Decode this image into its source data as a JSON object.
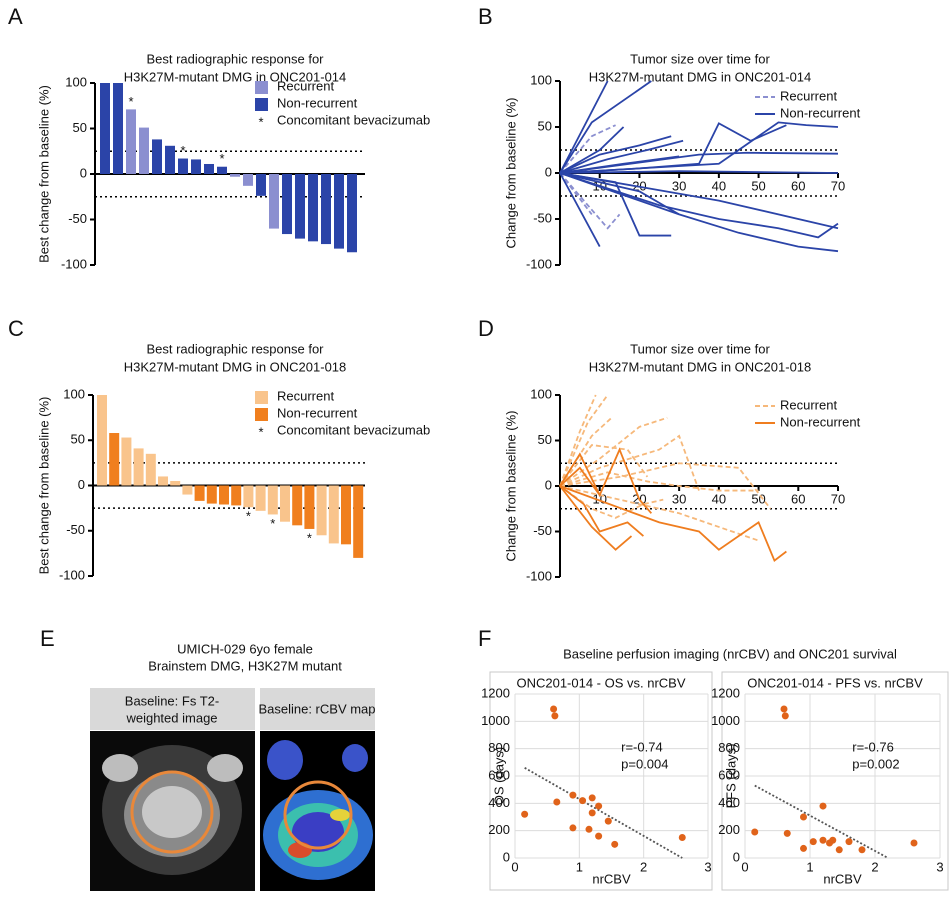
{
  "panels": [
    "A",
    "B",
    "C",
    "D",
    "E",
    "F"
  ],
  "chart_data": [
    {
      "type": "bar",
      "title": [
        "Best radiographic response for",
        "H3K27M-mutant DMG in ONC201-014"
      ],
      "y_label": "Best change from baseline (%)",
      "ylim": [
        -100,
        100
      ],
      "yticks": [
        -100,
        -50,
        0,
        50,
        100
      ],
      "ref_lines": [
        25,
        -25
      ],
      "series": [
        {
          "name": "Recurrent",
          "color": "#8b8fd0",
          "values": [
            null,
            null,
            71,
            51,
            null,
            null,
            null,
            null,
            null,
            null,
            -3,
            -13,
            null,
            -60,
            null,
            null,
            null,
            null,
            null,
            null
          ]
        },
        {
          "name": "Non-recurrent",
          "color": "#2b44a8",
          "values": [
            100,
            100,
            null,
            null,
            38,
            31,
            17,
            16,
            11,
            8,
            null,
            null,
            -24,
            null,
            -66,
            -71,
            -74,
            -77,
            -82,
            -86
          ]
        }
      ],
      "marker": {
        "name": "Concomitant bevacizumab",
        "symbol": "*",
        "indices": [
          2,
          6,
          9
        ]
      }
    },
    {
      "type": "line",
      "title": [
        "Tumor size over time for",
        "H3K27M-mutant DMG in ONC201-014"
      ],
      "y_label": "Change from baseline (%)",
      "xlim": [
        0,
        70
      ],
      "xticks": [
        10,
        20,
        30,
        40,
        50,
        60,
        70
      ],
      "ylim": [
        -100,
        100
      ],
      "yticks": [
        -100,
        -50,
        0,
        50,
        100
      ],
      "ref_lines": [
        25,
        -25
      ],
      "series": [
        {
          "name": "Recurrent",
          "color": "#8b8fd0",
          "dash": true,
          "lines": [
            {
              "x": [
                0,
                8,
                14
              ],
              "y": [
                0,
                40,
                52
              ]
            },
            {
              "x": [
                0,
                8,
                12,
                15
              ],
              "y": [
                0,
                -40,
                -60,
                -45
              ]
            },
            {
              "x": [
                0,
                8
              ],
              "y": [
                0,
                -45
              ]
            }
          ]
        },
        {
          "name": "Non-recurrent",
          "color": "#2b44a8",
          "dash": false,
          "lines": [
            {
              "x": [
                0,
                12
              ],
              "y": [
                0,
                100
              ]
            },
            {
              "x": [
                0,
                8,
                23
              ],
              "y": [
                0,
                55,
                100
              ]
            },
            {
              "x": [
                0,
                10,
                16
              ],
              "y": [
                0,
                25,
                50
              ]
            },
            {
              "x": [
                0,
                10,
                20,
                28
              ],
              "y": [
                0,
                20,
                30,
                40
              ]
            },
            {
              "x": [
                0,
                12,
                22,
                31
              ],
              "y": [
                0,
                15,
                25,
                35
              ]
            },
            {
              "x": [
                0,
                16,
                30
              ],
              "y": [
                0,
                10,
                18
              ]
            },
            {
              "x": [
                0,
                20,
                35,
                40,
                48,
                57
              ],
              "y": [
                0,
                5,
                10,
                54,
                35,
                52
              ]
            },
            {
              "x": [
                0,
                35,
                47,
                70
              ],
              "y": [
                0,
                20,
                22,
                21
              ]
            },
            {
              "x": [
                0,
                40,
                55,
                62,
                70
              ],
              "y": [
                0,
                10,
                55,
                52,
                50
              ]
            },
            {
              "x": [
                0,
                10
              ],
              "y": [
                0,
                -80
              ]
            },
            {
              "x": [
                0,
                14,
                20,
                28
              ],
              "y": [
                0,
                -10,
                -68,
                -68
              ]
            },
            {
              "x": [
                0,
                20,
                30
              ],
              "y": [
                0,
                -20,
                -45
              ]
            },
            {
              "x": [
                0,
                25,
                40,
                55,
                65,
                70
              ],
              "y": [
                0,
                -35,
                -50,
                -60,
                -70,
                -55
              ]
            },
            {
              "x": [
                0,
                30,
                45,
                60,
                70
              ],
              "y": [
                0,
                -45,
                -65,
                -80,
                -85
              ]
            },
            {
              "x": [
                0,
                20,
                40,
                70
              ],
              "y": [
                0,
                -15,
                -30,
                -60
              ]
            },
            {
              "x": [
                0,
                30,
                70
              ],
              "y": [
                0,
                2,
                0
              ]
            }
          ]
        }
      ]
    },
    {
      "type": "bar",
      "title": [
        "Best radiographic response for",
        "H3K27M-mutant DMG in ONC201-018"
      ],
      "y_label": "Best change from baseline (%)",
      "ylim": [
        -100,
        100
      ],
      "yticks": [
        -100,
        -50,
        0,
        50,
        100
      ],
      "ref_lines": [
        25,
        -25
      ],
      "series": [
        {
          "name": "Recurrent",
          "color": "#f9c48c",
          "values": [
            100,
            null,
            53,
            41,
            35,
            10,
            5,
            -10,
            null,
            null,
            null,
            null,
            -24,
            -28,
            -32,
            -40,
            null,
            null,
            -55,
            -64,
            null,
            null
          ]
        },
        {
          "name": "Non-recurrent",
          "color": "#f07f1e",
          "values": [
            null,
            58,
            null,
            null,
            null,
            null,
            null,
            null,
            -17,
            -20,
            -21,
            -22,
            null,
            null,
            null,
            null,
            -44,
            -48,
            null,
            null,
            -65,
            -80
          ]
        }
      ],
      "marker": {
        "name": "Concomitant bevacizumab",
        "symbol": "*",
        "indices": [
          12,
          14,
          17
        ]
      }
    },
    {
      "type": "line",
      "title": [
        "Tumor size over time for",
        "H3K27M-mutant DMG in ONC201-018"
      ],
      "y_label": "Change from baseline (%)",
      "xlim": [
        0,
        70
      ],
      "xticks": [
        10,
        20,
        30,
        40,
        50,
        60,
        70
      ],
      "ylim": [
        -100,
        100
      ],
      "yticks": [
        -100,
        -50,
        0,
        50,
        100
      ],
      "ref_lines": [
        25,
        -25
      ],
      "series": [
        {
          "name": "Recurrent",
          "color": "#f6b87a",
          "dash": true,
          "lines": [
            {
              "x": [
                0,
                5,
                9
              ],
              "y": [
                0,
                60,
                100
              ]
            },
            {
              "x": [
                0,
                7,
                12
              ],
              "y": [
                0,
                70,
                100
              ]
            },
            {
              "x": [
                0,
                8,
                13
              ],
              "y": [
                0,
                55,
                75
              ]
            },
            {
              "x": [
                0,
                8,
                17,
                22
              ],
              "y": [
                0,
                45,
                40,
                10
              ]
            },
            {
              "x": [
                0,
                10,
                20,
                27
              ],
              "y": [
                0,
                30,
                65,
                75
              ]
            },
            {
              "x": [
                0,
                10,
                25,
                30,
                35
              ],
              "y": [
                0,
                20,
                40,
                55,
                -5
              ]
            },
            {
              "x": [
                0,
                15,
                30,
                45,
                53
              ],
              "y": [
                0,
                10,
                25,
                20,
                -25
              ]
            },
            {
              "x": [
                0,
                20,
                30,
                40,
                50
              ],
              "y": [
                0,
                -20,
                -30,
                -45,
                -60
              ]
            },
            {
              "x": [
                0,
                8,
                14,
                21,
                26
              ],
              "y": [
                0,
                -25,
                -35,
                -20,
                -15
              ]
            },
            {
              "x": [
                0,
                12,
                22,
                30,
                40,
                50
              ],
              "y": [
                0,
                15,
                5,
                0,
                -5,
                -5
              ]
            }
          ]
        },
        {
          "name": "Non-recurrent",
          "color": "#ef7d1f",
          "dash": false,
          "lines": [
            {
              "x": [
                0,
                5,
                10,
                15,
                20,
                23
              ],
              "y": [
                0,
                35,
                -10,
                40,
                -15,
                -30
              ]
            },
            {
              "x": [
                0,
                6,
                10,
                17,
                21
              ],
              "y": [
                0,
                -20,
                -50,
                -40,
                -55
              ]
            },
            {
              "x": [
                0,
                8,
                14,
                18
              ],
              "y": [
                0,
                -45,
                -70,
                -55
              ]
            },
            {
              "x": [
                0,
                25,
                35,
                40,
                45,
                50,
                54,
                57
              ],
              "y": [
                0,
                -40,
                -50,
                -70,
                -55,
                -40,
                -82,
                -72
              ]
            },
            {
              "x": [
                0,
                5,
                10
              ],
              "y": [
                0,
                20,
                -10
              ]
            }
          ]
        }
      ]
    },
    {
      "type": "scatter",
      "title": "ONC201-014 - OS vs. nrCBV",
      "x_label": "nrCBV",
      "y_label": "OS (days)",
      "xlim": [
        0,
        3
      ],
      "xticks": [
        0,
        1,
        2,
        3
      ],
      "ylim": [
        0,
        1200
      ],
      "yticks": [
        0,
        200,
        400,
        600,
        800,
        1000,
        1200
      ],
      "grid": true,
      "color": "#e0631a",
      "x": [
        0.15,
        0.6,
        0.62,
        0.65,
        0.9,
        0.9,
        1.05,
        1.15,
        1.2,
        1.2,
        1.3,
        1.3,
        1.45,
        1.55,
        2.6
      ],
      "y": [
        320,
        1090,
        1040,
        410,
        460,
        220,
        420,
        210,
        440,
        330,
        380,
        160,
        270,
        100,
        150
      ],
      "fit": {
        "x": [
          0.15,
          2.6
        ],
        "y": [
          660,
          0
        ]
      },
      "annotations": [
        "r=-0.74",
        "p=0.004"
      ]
    },
    {
      "type": "scatter",
      "title": "ONC201-014 - PFS vs. nrCBV",
      "x_label": "nrCBV",
      "y_label": "PFS (days)",
      "xlim": [
        0,
        3
      ],
      "xticks": [
        0,
        1,
        2,
        3
      ],
      "ylim": [
        0,
        1200
      ],
      "yticks": [
        0,
        200,
        400,
        600,
        800,
        1000,
        1200
      ],
      "grid": true,
      "color": "#e0631a",
      "x": [
        0.15,
        0.6,
        0.62,
        0.65,
        0.9,
        0.9,
        1.05,
        1.2,
        1.2,
        1.3,
        1.35,
        1.45,
        1.6,
        1.8,
        2.6
      ],
      "y": [
        190,
        1090,
        1040,
        180,
        300,
        70,
        120,
        380,
        130,
        110,
        130,
        60,
        120,
        60,
        110
      ],
      "fit": {
        "x": [
          0.15,
          2.2
        ],
        "y": [
          530,
          0
        ]
      },
      "annotations": [
        "r=-0.76",
        "p=0.002"
      ]
    }
  ],
  "panel_e": {
    "title": [
      "UMICH-029 6yo female",
      "Brainstem DMG, H3K27M mutant"
    ],
    "images": [
      {
        "label": [
          "Baseline: Fs T2-",
          "weighted image"
        ]
      },
      {
        "label": [
          "Baseline: rCBV map"
        ]
      }
    ]
  },
  "panel_f": {
    "title": "Baseline perfusion imaging (nrCBV) and ONC201 survival"
  }
}
